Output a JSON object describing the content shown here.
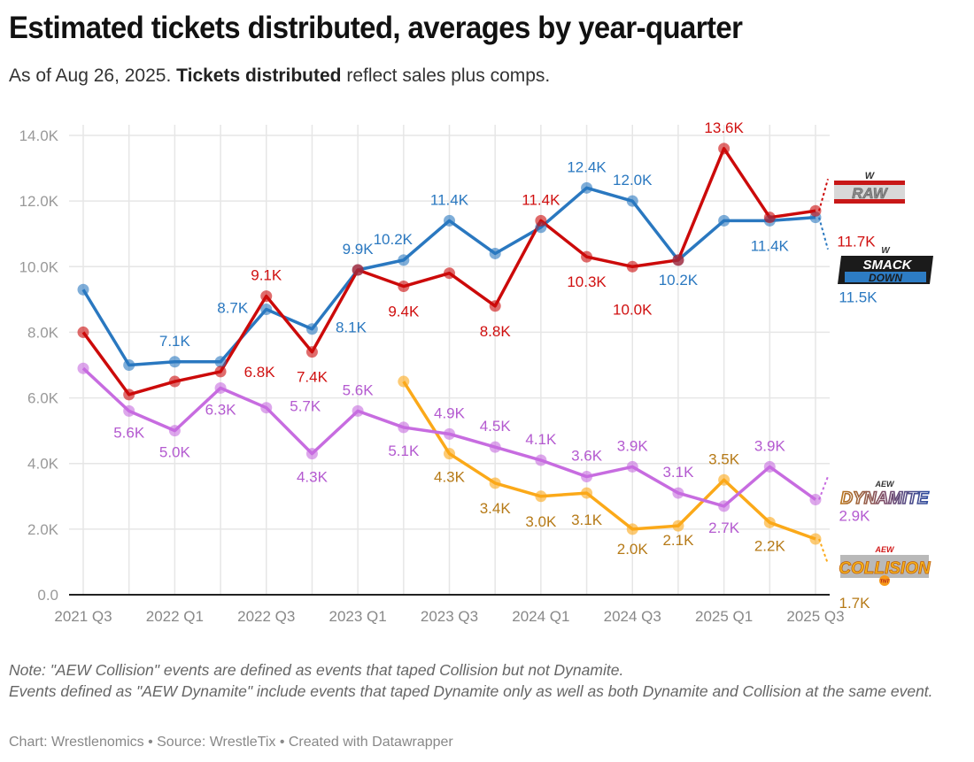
{
  "header": {
    "title": "Estimated tickets distributed, averages by year-quarter",
    "subtitle_prefix": "As of Aug 26, 2025.",
    "subtitle_bold": "Tickets distributed",
    "subtitle_suffix": "reflect sales plus comps."
  },
  "footer": {
    "note_line1": "Note: \"AEW Collision\" events are defined as events that taped Collision but not Dynamite.",
    "note_line2": "Events defined as \"AEW Dynamite\" include events that taped Dynamite only as well as both Dynamite and Collision at the same event.",
    "credit": "Chart: Wrestlenomics • Source: WrestleTix • Created with Datawrapper"
  },
  "logos": {
    "raw": {
      "icon": "wwe-raw-logo",
      "text": "RAW",
      "badge": "W"
    },
    "smackdown": {
      "icon": "wwe-smackdown-logo",
      "text_top": "SMACK",
      "text_bottom": "DOWN",
      "badge": "W"
    },
    "dynamite": {
      "icon": "aew-dynamite-logo",
      "text_top": "AEW",
      "text_main": "DYNAMITE"
    },
    "collision": {
      "icon": "aew-collision-logo",
      "text_top": "AEW",
      "text_main": "COLLISION",
      "badge": "TNT"
    }
  },
  "chart_data": {
    "type": "line",
    "title": "Estimated tickets distributed, averages by year-quarter",
    "xlabel": "",
    "ylabel": "",
    "ylim": [
      0,
      14000
    ],
    "grid": true,
    "legend": "direct labels with logos at right end of lines",
    "y_ticks": [
      0,
      2000,
      4000,
      6000,
      8000,
      10000,
      12000,
      14000
    ],
    "y_tick_labels": [
      "0.0",
      "2.0K",
      "4.0K",
      "6.0K",
      "8.0K",
      "10.0K",
      "12.0K",
      "14.0K"
    ],
    "x": [
      "2021 Q3",
      "2021 Q4",
      "2022 Q1",
      "2022 Q2",
      "2022 Q3",
      "2022 Q4",
      "2023 Q1",
      "2023 Q2",
      "2023 Q3",
      "2023 Q4",
      "2024 Q1",
      "2024 Q2",
      "2024 Q3",
      "2024 Q4",
      "2025 Q1",
      "2025 Q2",
      "2025 Q3"
    ],
    "x_tick_labels": [
      "2021 Q3",
      "2022 Q1",
      "2022 Q3",
      "2023 Q1",
      "2023 Q3",
      "2024 Q1",
      "2024 Q3",
      "2025 Q1",
      "2025 Q3"
    ],
    "series": [
      {
        "name": "WWE SmackDown",
        "color": "#2a78c0",
        "label_color": "#2a78c0",
        "values": [
          9300,
          7000,
          7100,
          7100,
          8700,
          8100,
          9900,
          10200,
          11400,
          10400,
          11200,
          12400,
          12000,
          10200,
          11400,
          11400,
          11500
        ],
        "labels": [
          null,
          null,
          "7.1K",
          null,
          "8.7K",
          "8.1K",
          "9.9K",
          "10.2K",
          "11.4K",
          null,
          null,
          "12.4K",
          "12.0K",
          "10.2K",
          null,
          "11.4K",
          "11.5K"
        ]
      },
      {
        "name": "WWE Raw",
        "color": "#cc0a0a",
        "label_color": "#d01010",
        "values": [
          8000,
          6100,
          6500,
          6800,
          9100,
          7400,
          9900,
          9400,
          9800,
          8800,
          11400,
          10300,
          10000,
          10200,
          13600,
          11500,
          11700
        ],
        "labels": [
          null,
          null,
          null,
          "6.8K",
          "9.1K",
          "7.4K",
          null,
          "9.4K",
          null,
          "8.8K",
          "11.4K",
          "10.3K",
          "10.0K",
          null,
          "13.6K",
          null,
          "11.7K"
        ]
      },
      {
        "name": "AEW Dynamite",
        "color": "#c76ce0",
        "label_color": "#b45ad0",
        "values": [
          6900,
          5600,
          5000,
          6300,
          5700,
          4300,
          5600,
          5100,
          4900,
          4500,
          4100,
          3600,
          3900,
          3100,
          2700,
          3900,
          2900
        ],
        "labels": [
          null,
          "5.6K",
          "5.0K",
          "6.3K",
          "5.7K",
          "4.3K",
          "5.6K",
          "5.1K",
          "4.9K",
          "4.5K",
          "4.1K",
          "3.6K",
          "3.9K",
          "3.1K",
          "2.7K",
          "3.9K",
          "2.9K"
        ]
      },
      {
        "name": "AEW Collision",
        "color": "#fba919",
        "label_color": "#b67a17",
        "values": [
          null,
          null,
          null,
          null,
          null,
          null,
          null,
          6500,
          4300,
          3400,
          3000,
          3100,
          2000,
          2100,
          3500,
          2200,
          1700
        ],
        "labels": [
          null,
          null,
          null,
          null,
          null,
          null,
          null,
          null,
          "4.3K",
          "3.4K",
          "3.0K",
          "3.1K",
          "2.0K",
          "2.1K",
          "3.5K",
          "2.2K",
          "1.7K"
        ]
      }
    ]
  }
}
